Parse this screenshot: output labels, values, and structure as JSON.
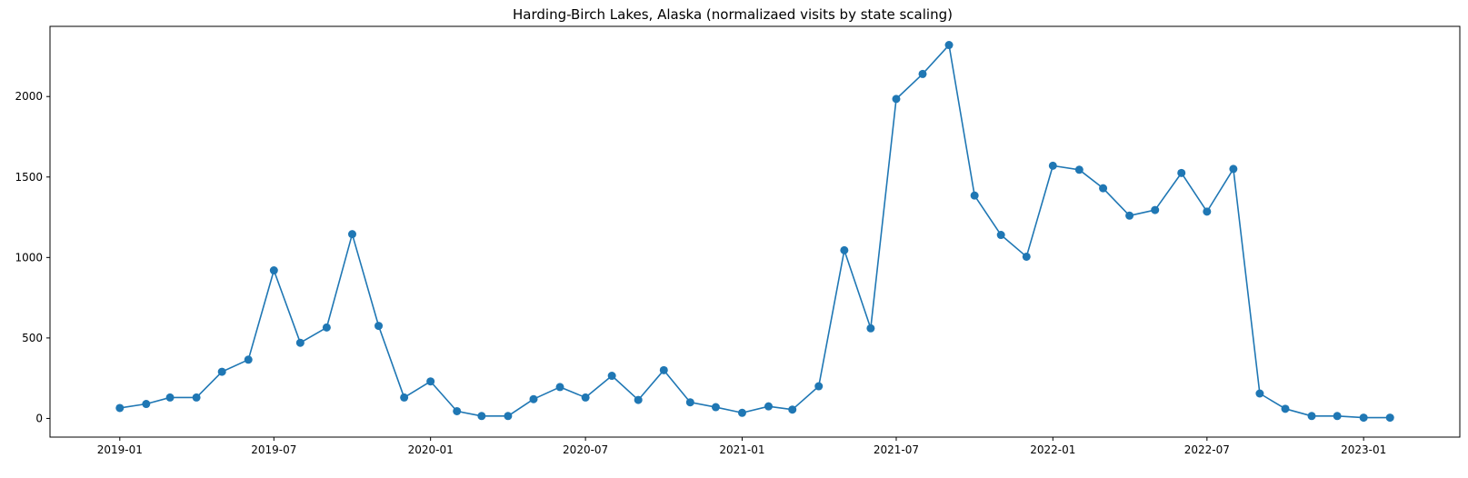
{
  "chart_data": {
    "type": "line",
    "title": "Harding-Birch Lakes, Alaska (normalizaed visits by state scaling)",
    "xlabel": "",
    "ylabel": "",
    "x": [
      "2019-01-01",
      "2019-02-01",
      "2019-03-01",
      "2019-04-01",
      "2019-05-01",
      "2019-06-01",
      "2019-07-01",
      "2019-08-01",
      "2019-09-01",
      "2019-10-01",
      "2019-11-01",
      "2019-12-01",
      "2020-01-01",
      "2020-02-01",
      "2020-03-01",
      "2020-04-01",
      "2020-05-01",
      "2020-06-01",
      "2020-07-01",
      "2020-08-01",
      "2020-09-01",
      "2020-10-01",
      "2020-11-01",
      "2020-12-01",
      "2021-01-01",
      "2021-02-01",
      "2021-03-01",
      "2021-04-01",
      "2021-05-01",
      "2021-06-01",
      "2021-07-01",
      "2021-08-01",
      "2021-09-01",
      "2021-10-01",
      "2021-11-01",
      "2021-12-01",
      "2022-01-01",
      "2022-02-01",
      "2022-03-01",
      "2022-04-01",
      "2022-05-01",
      "2022-06-01",
      "2022-07-01",
      "2022-08-01",
      "2022-09-01",
      "2022-10-01",
      "2022-11-01",
      "2022-12-01",
      "2023-01-01",
      "2023-02-01"
    ],
    "series": [
      {
        "values": [
          65,
          90,
          130,
          130,
          290,
          365,
          920,
          470,
          565,
          1145,
          575,
          130,
          230,
          45,
          15,
          15,
          120,
          195,
          130,
          265,
          115,
          300,
          100,
          70,
          35,
          75,
          55,
          200,
          1045,
          560,
          1985,
          2140,
          2320,
          1385,
          1140,
          1005,
          1570,
          1545,
          1430,
          1260,
          1295,
          1525,
          1285,
          1550,
          155,
          60,
          15,
          15,
          5,
          5
        ],
        "color": "#1f77b4"
      }
    ],
    "x_ticks": [
      "2019-01",
      "2019-07",
      "2020-01",
      "2020-07",
      "2021-01",
      "2021-07",
      "2022-01",
      "2022-07",
      "2023-01"
    ],
    "y_ticks": [
      0,
      500,
      1000,
      1500,
      2000
    ],
    "xlim": [
      "2018-10-11",
      "2023-04-24"
    ],
    "ylim": [
      -116,
      2436
    ],
    "grid": false,
    "legend": "none",
    "marker": "circle"
  }
}
